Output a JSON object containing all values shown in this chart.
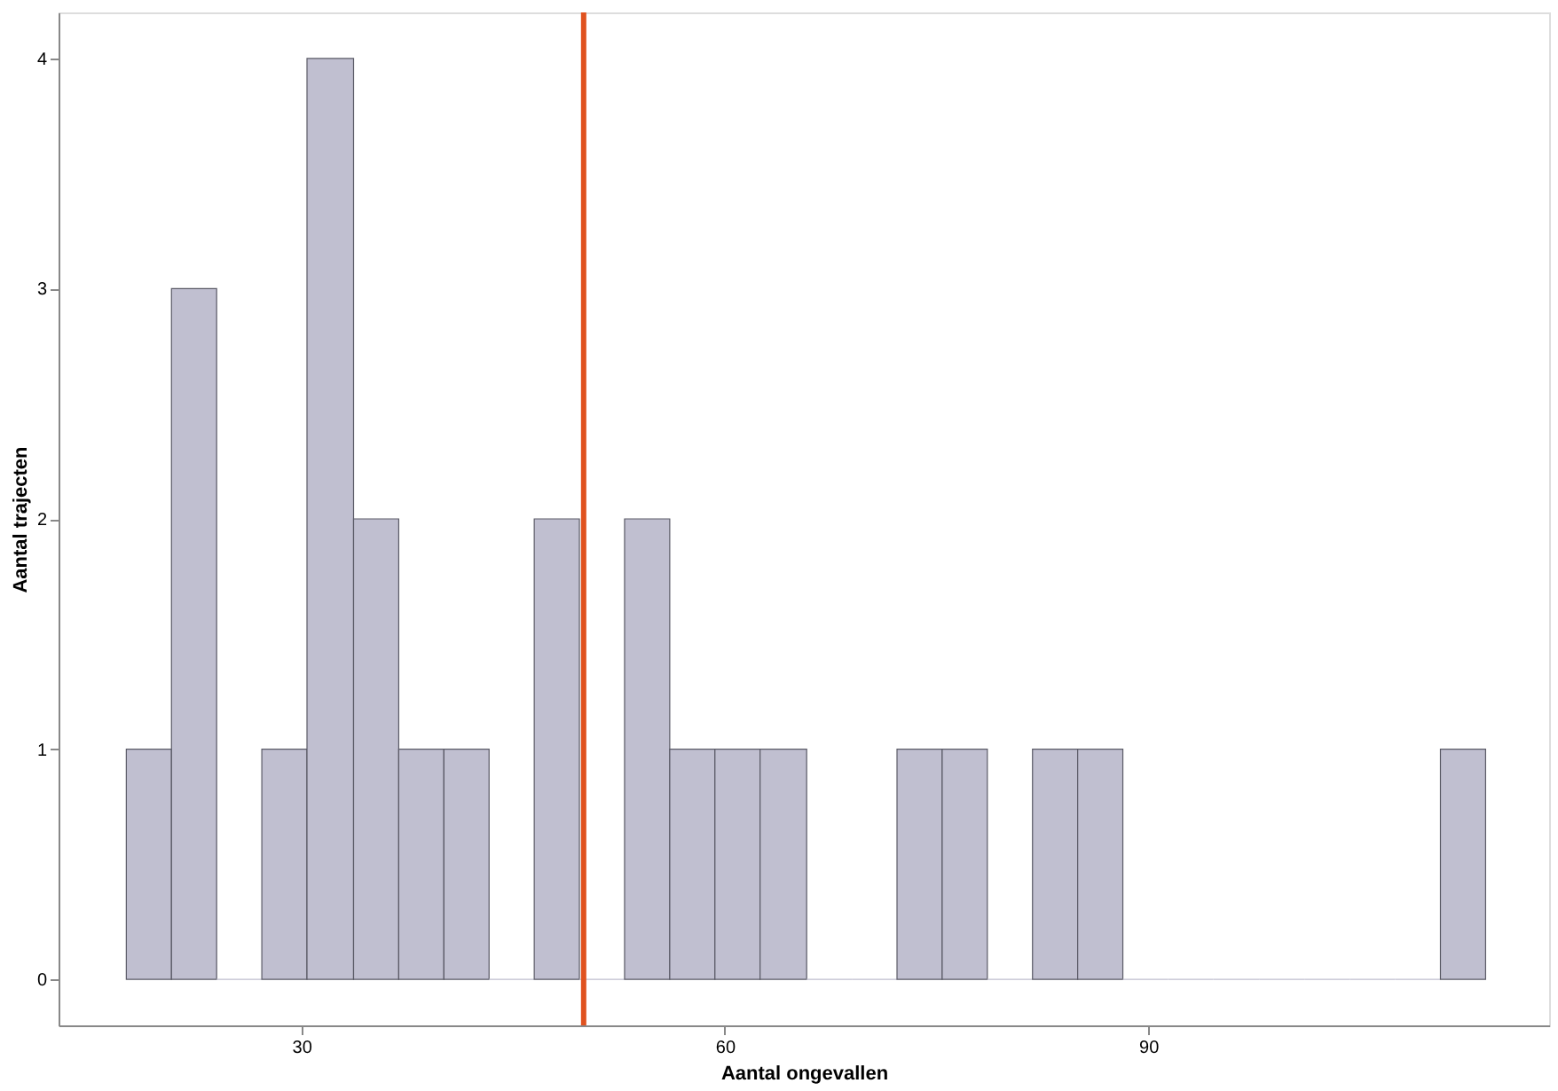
{
  "chart_data": {
    "type": "histogram",
    "xlabel": "Aantal ongevallen",
    "ylabel": "Aantal trajecten",
    "bins": [
      17.6,
      20.8,
      24.0,
      27.2,
      30.4,
      33.7,
      36.9,
      40.1,
      43.3,
      46.5,
      49.7,
      52.9,
      56.1,
      59.3,
      62.5,
      65.8,
      69.0,
      72.2,
      75.4,
      78.6,
      81.8,
      85.0,
      88.2,
      91.4,
      94.6,
      97.9,
      101.1,
      104.3,
      107.5,
      110.7,
      113.9
    ],
    "values": [
      1,
      3,
      0,
      1,
      4,
      2,
      1,
      1,
      0,
      2,
      0,
      2,
      1,
      1,
      1,
      0,
      0,
      1,
      1,
      0,
      1,
      1,
      0,
      0,
      0,
      0,
      0,
      0,
      0,
      1
    ],
    "color": "#c0bfd0",
    "xlim": [
      12.8,
      118.4
    ],
    "xticks": [
      30,
      60,
      90
    ],
    "ylim": [
      -0.2,
      4.2
    ],
    "yticks": [
      0,
      1,
      2,
      3,
      4
    ],
    "grid": false,
    "ref_lines": [
      {
        "axis": "x",
        "value": 50,
        "color": "#e0521f"
      }
    ]
  }
}
